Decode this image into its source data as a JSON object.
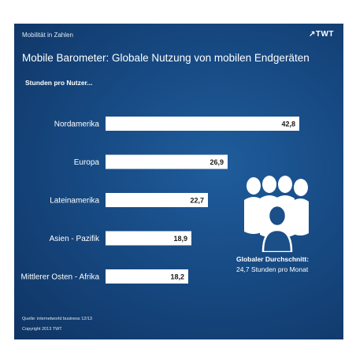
{
  "header": {
    "topline": "Mobilität in Zahlen",
    "logo": "↗TWT",
    "title": "Mobile Barometer: Globale Nutzung von mobilen Endgeräten",
    "subtitle": "Stunden pro Nutzer..."
  },
  "chart_data": {
    "type": "bar",
    "orientation": "horizontal",
    "categories": [
      "Nordamerika",
      "Europa",
      "Lateinamerika",
      "Asien - Pazifik",
      "Mittlerer Osten - Afrika"
    ],
    "values": [
      42.8,
      26.9,
      22.7,
      18.9,
      18.2
    ],
    "value_labels": [
      "42,8",
      "26,9",
      "22,7",
      "18,9",
      "18,2"
    ],
    "title": "Mobile Barometer: Globale Nutzung von mobilen Endgeräten",
    "ylabel": "Stunden pro Nutzer...",
    "xlim": [
      0,
      42.8
    ],
    "grid": false,
    "legend": "none",
    "bar_color": "#ffffff",
    "label_color": "#1a1a1a"
  },
  "average": {
    "title": "Globaler Durchschnitt:",
    "value": "24,7 Stunden pro Monat"
  },
  "footer": {
    "source": "Quelle: internetworld business 12/13",
    "copyright": "Copyright 2013 TWT"
  },
  "colors": {
    "background": "#174a83",
    "text": "#ffffff"
  }
}
